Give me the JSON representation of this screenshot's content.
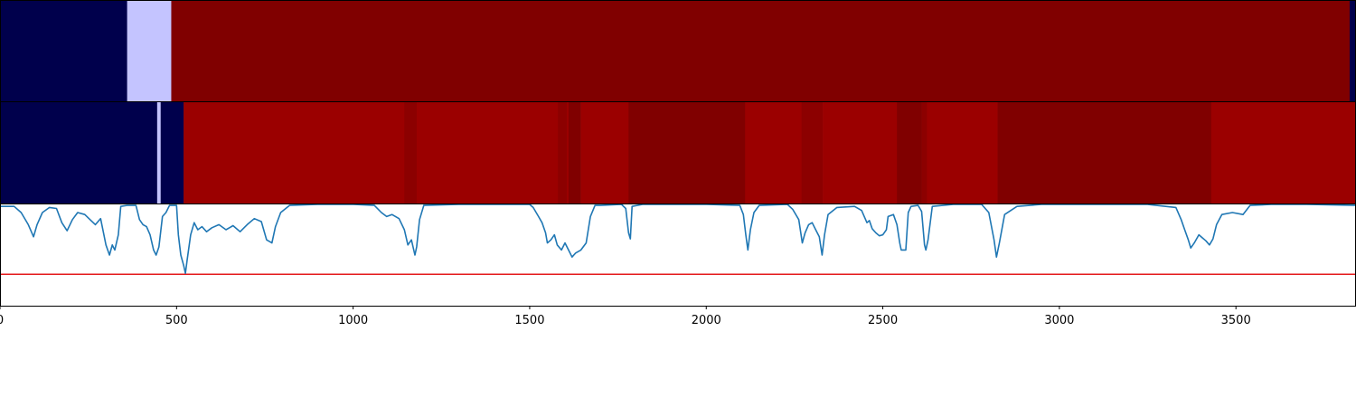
{
  "chart_data": [
    {
      "type": "heatmap",
      "panel": "top-band",
      "cmap": "seismic",
      "xlim": [
        0,
        3840
      ],
      "segments": [
        {
          "start": 0,
          "end": 360,
          "color": "#00004c"
        },
        {
          "start": 360,
          "end": 485,
          "color": "#c4c4ff"
        },
        {
          "start": 485,
          "end": 3822,
          "color": "#800000"
        },
        {
          "start": 3822,
          "end": 3840,
          "color": "#00004c"
        }
      ]
    },
    {
      "type": "heatmap",
      "panel": "middle-band",
      "cmap": "seismic",
      "xlim": [
        0,
        3840
      ],
      "segments": [
        {
          "start": 0,
          "end": 445,
          "color": "#00004c"
        },
        {
          "start": 445,
          "end": 455,
          "color": "#c4c4ff"
        },
        {
          "start": 455,
          "end": 520,
          "color": "#00004c"
        },
        {
          "start": 520,
          "end": 1145,
          "color": "#9b0000"
        },
        {
          "start": 1145,
          "end": 1180,
          "color": "#8c0000"
        },
        {
          "start": 1180,
          "end": 1580,
          "color": "#9b0000"
        },
        {
          "start": 1580,
          "end": 1605,
          "color": "#8c0000"
        },
        {
          "start": 1605,
          "end": 1610,
          "color": "#9b0000"
        },
        {
          "start": 1610,
          "end": 1645,
          "color": "#800000"
        },
        {
          "start": 1645,
          "end": 1780,
          "color": "#9b0000"
        },
        {
          "start": 1780,
          "end": 2110,
          "color": "#800000"
        },
        {
          "start": 2110,
          "end": 2270,
          "color": "#9b0000"
        },
        {
          "start": 2270,
          "end": 2330,
          "color": "#8c0000"
        },
        {
          "start": 2330,
          "end": 2540,
          "color": "#9b0000"
        },
        {
          "start": 2540,
          "end": 2610,
          "color": "#800000"
        },
        {
          "start": 2610,
          "end": 2625,
          "color": "#8c0000"
        },
        {
          "start": 2625,
          "end": 2825,
          "color": "#9b0000"
        },
        {
          "start": 2825,
          "end": 3430,
          "color": "#800000"
        },
        {
          "start": 3430,
          "end": 3840,
          "color": "#9b0000"
        }
      ]
    },
    {
      "type": "line",
      "panel": "bottom-line",
      "xlim": [
        0,
        3840
      ],
      "ylim": [
        0,
        1
      ],
      "xticks": [
        "0",
        "500",
        "1000",
        "1500",
        "2000",
        "2500",
        "3000",
        "3500"
      ],
      "grid": false,
      "threshold": {
        "y": 0.31,
        "color": "#e41a1c"
      },
      "series": [
        {
          "color": "#1f77b4",
          "points": [
            [
              0,
              0.98
            ],
            [
              40,
              0.98
            ],
            [
              60,
              0.92
            ],
            [
              80,
              0.8
            ],
            [
              95,
              0.68
            ],
            [
              105,
              0.8
            ],
            [
              120,
              0.92
            ],
            [
              140,
              0.97
            ],
            [
              160,
              0.96
            ],
            [
              175,
              0.82
            ],
            [
              190,
              0.74
            ],
            [
              205,
              0.85
            ],
            [
              220,
              0.92
            ],
            [
              240,
              0.9
            ],
            [
              255,
              0.85
            ],
            [
              270,
              0.8
            ],
            [
              285,
              0.86
            ],
            [
              300,
              0.6
            ],
            [
              310,
              0.5
            ],
            [
              318,
              0.6
            ],
            [
              325,
              0.55
            ],
            [
              335,
              0.7
            ],
            [
              342,
              0.98
            ],
            [
              360,
              0.99
            ],
            [
              385,
              0.99
            ],
            [
              395,
              0.85
            ],
            [
              405,
              0.8
            ],
            [
              415,
              0.78
            ],
            [
              425,
              0.7
            ],
            [
              435,
              0.55
            ],
            [
              442,
              0.5
            ],
            [
              450,
              0.58
            ],
            [
              460,
              0.88
            ],
            [
              470,
              0.92
            ],
            [
              480,
              0.99
            ],
            [
              500,
              0.99
            ],
            [
              505,
              0.7
            ],
            [
              512,
              0.5
            ],
            [
              520,
              0.4
            ],
            [
              525,
              0.32
            ],
            [
              530,
              0.45
            ],
            [
              540,
              0.7
            ],
            [
              550,
              0.82
            ],
            [
              560,
              0.75
            ],
            [
              572,
              0.78
            ],
            [
              585,
              0.73
            ],
            [
              600,
              0.77
            ],
            [
              620,
              0.8
            ],
            [
              640,
              0.75
            ],
            [
              660,
              0.79
            ],
            [
              680,
              0.73
            ],
            [
              700,
              0.8
            ],
            [
              720,
              0.86
            ],
            [
              740,
              0.83
            ],
            [
              755,
              0.65
            ],
            [
              770,
              0.62
            ],
            [
              780,
              0.78
            ],
            [
              795,
              0.92
            ],
            [
              820,
              0.99
            ],
            [
              900,
              1.0
            ],
            [
              1000,
              1.0
            ],
            [
              1060,
              0.99
            ],
            [
              1080,
              0.92
            ],
            [
              1095,
              0.88
            ],
            [
              1110,
              0.9
            ],
            [
              1130,
              0.86
            ],
            [
              1145,
              0.75
            ],
            [
              1155,
              0.6
            ],
            [
              1165,
              0.65
            ],
            [
              1175,
              0.5
            ],
            [
              1180,
              0.58
            ],
            [
              1188,
              0.85
            ],
            [
              1200,
              0.99
            ],
            [
              1300,
              1.0
            ],
            [
              1400,
              1.0
            ],
            [
              1500,
              1.0
            ],
            [
              1510,
              0.97
            ],
            [
              1525,
              0.88
            ],
            [
              1535,
              0.82
            ],
            [
              1545,
              0.72
            ],
            [
              1550,
              0.62
            ],
            [
              1560,
              0.65
            ],
            [
              1570,
              0.7
            ],
            [
              1578,
              0.6
            ],
            [
              1590,
              0.55
            ],
            [
              1600,
              0.62
            ],
            [
              1610,
              0.55
            ],
            [
              1620,
              0.48
            ],
            [
              1630,
              0.52
            ],
            [
              1645,
              0.55
            ],
            [
              1660,
              0.62
            ],
            [
              1672,
              0.88
            ],
            [
              1685,
              0.99
            ],
            [
              1700,
              0.99
            ],
            [
              1760,
              1.0
            ],
            [
              1772,
              0.96
            ],
            [
              1780,
              0.72
            ],
            [
              1785,
              0.66
            ],
            [
              1790,
              0.98
            ],
            [
              1820,
              1.0
            ],
            [
              1900,
              1.0
            ],
            [
              2000,
              1.0
            ],
            [
              2095,
              0.99
            ],
            [
              2105,
              0.9
            ],
            [
              2112,
              0.7
            ],
            [
              2118,
              0.55
            ],
            [
              2125,
              0.75
            ],
            [
              2135,
              0.92
            ],
            [
              2150,
              0.99
            ],
            [
              2230,
              1.0
            ],
            [
              2245,
              0.95
            ],
            [
              2262,
              0.85
            ],
            [
              2272,
              0.62
            ],
            [
              2280,
              0.72
            ],
            [
              2290,
              0.8
            ],
            [
              2300,
              0.82
            ],
            [
              2310,
              0.75
            ],
            [
              2320,
              0.68
            ],
            [
              2328,
              0.5
            ],
            [
              2335,
              0.7
            ],
            [
              2345,
              0.9
            ],
            [
              2370,
              0.97
            ],
            [
              2420,
              0.98
            ],
            [
              2440,
              0.94
            ],
            [
              2455,
              0.82
            ],
            [
              2462,
              0.84
            ],
            [
              2470,
              0.76
            ],
            [
              2480,
              0.72
            ],
            [
              2490,
              0.69
            ],
            [
              2500,
              0.7
            ],
            [
              2510,
              0.75
            ],
            [
              2515,
              0.88
            ],
            [
              2530,
              0.9
            ],
            [
              2540,
              0.8
            ],
            [
              2548,
              0.62
            ],
            [
              2552,
              0.55
            ],
            [
              2565,
              0.55
            ],
            [
              2572,
              0.92
            ],
            [
              2580,
              0.98
            ],
            [
              2600,
              0.99
            ],
            [
              2610,
              0.93
            ],
            [
              2618,
              0.6
            ],
            [
              2622,
              0.55
            ],
            [
              2628,
              0.65
            ],
            [
              2640,
              0.98
            ],
            [
              2700,
              1.0
            ],
            [
              2780,
              1.0
            ],
            [
              2800,
              0.92
            ],
            [
              2815,
              0.65
            ],
            [
              2822,
              0.48
            ],
            [
              2830,
              0.62
            ],
            [
              2845,
              0.9
            ],
            [
              2880,
              0.98
            ],
            [
              2950,
              1.0
            ],
            [
              3100,
              1.0
            ],
            [
              3250,
              1.0
            ],
            [
              3330,
              0.97
            ],
            [
              3345,
              0.85
            ],
            [
              3355,
              0.75
            ],
            [
              3365,
              0.65
            ],
            [
              3372,
              0.57
            ],
            [
              3382,
              0.62
            ],
            [
              3395,
              0.7
            ],
            [
              3405,
              0.67
            ],
            [
              3415,
              0.64
            ],
            [
              3425,
              0.6
            ],
            [
              3435,
              0.66
            ],
            [
              3445,
              0.8
            ],
            [
              3460,
              0.9
            ],
            [
              3490,
              0.92
            ],
            [
              3520,
              0.9
            ],
            [
              3540,
              0.99
            ],
            [
              3600,
              1.0
            ],
            [
              3700,
              1.0
            ],
            [
              3840,
              0.99
            ]
          ]
        }
      ]
    }
  ]
}
